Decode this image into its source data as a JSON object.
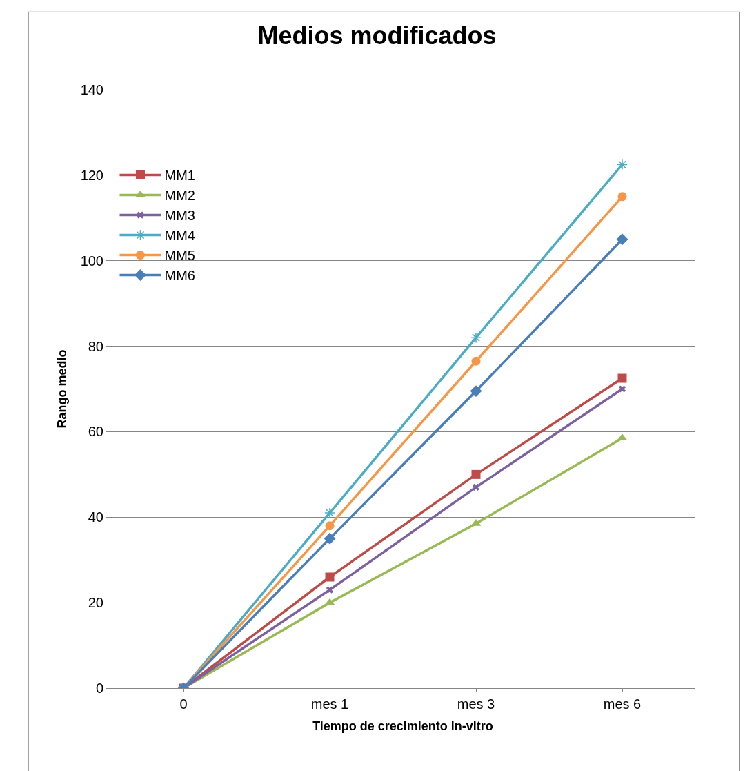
{
  "chart_data": {
    "type": "line",
    "title": "Medios modificados",
    "xlabel": "Tiempo de crecimiento in-vitro",
    "ylabel": "Rango medio",
    "categories": [
      "0",
      "mes 1",
      "mes 3",
      "mes 6"
    ],
    "series": [
      {
        "name": "MM1",
        "color": "#be4b48",
        "marker": "square",
        "values": [
          0,
          26,
          50,
          72.5
        ]
      },
      {
        "name": "MM2",
        "color": "#98b954",
        "marker": "triangle",
        "values": [
          0,
          20,
          38.5,
          58.5
        ]
      },
      {
        "name": "MM3",
        "color": "#7d60a0",
        "marker": "cross",
        "values": [
          0,
          23,
          47,
          70
        ]
      },
      {
        "name": "MM4",
        "color": "#4bacc6",
        "marker": "cross",
        "values": [
          0,
          41,
          82,
          122.5
        ]
      },
      {
        "name": "MM5",
        "color": "#f79646",
        "marker": "circle",
        "values": [
          0,
          38,
          76.5,
          115
        ]
      },
      {
        "name": "MM6",
        "color": "#4a7ebb",
        "marker": "diamond",
        "values": [
          0,
          35,
          69.5,
          105
        ]
      }
    ],
    "ylim": [
      0,
      140
    ],
    "yticks": [
      0,
      20,
      40,
      60,
      80,
      100,
      120,
      140
    ],
    "grid": "y",
    "legend": "top left",
    "line_style": "solid"
  }
}
